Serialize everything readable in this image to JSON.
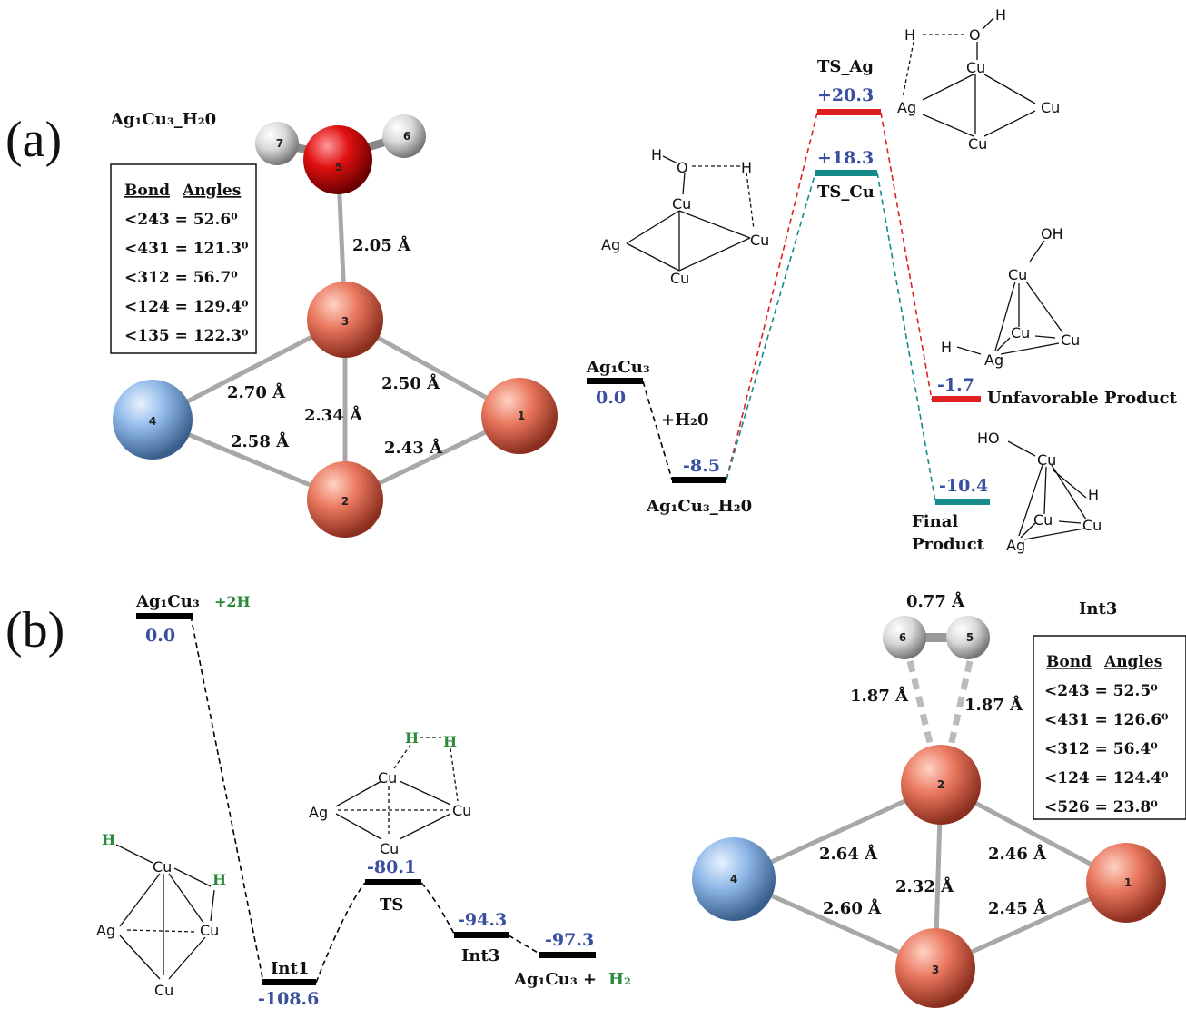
{
  "panel_a": {
    "label": "(a)",
    "molecule": {
      "title": "Ag₁Cu₃_H₂0",
      "angles_header_1": "Bond",
      "angles_header_2": "Angles",
      "angles": [
        "<243 = 52.6⁰",
        "<431 = 121.3⁰",
        "<312 = 56.7⁰",
        "<124 = 129.4⁰",
        "<135 = 122.3⁰"
      ],
      "bond_lengths": [
        "2.05 Å",
        "2.70 Å",
        "2.50 Å",
        "2.34 Å",
        "2.58 Å",
        "2.43 Å"
      ],
      "atom_labels": [
        "1",
        "2",
        "3",
        "4",
        "5",
        "6",
        "7"
      ]
    },
    "energy": {
      "levels": [
        {
          "name": "Ag₁Cu₃",
          "value": "0.0"
        },
        {
          "name": "Ag₁Cu₃_H₂0",
          "value": "-8.5"
        },
        {
          "name": "TS_Ag",
          "value": "+20.3"
        },
        {
          "name": "TS_Cu",
          "value": "+18.3"
        },
        {
          "name": "Unfavorable Product",
          "value": "-1.7"
        },
        {
          "name_line1": "Final",
          "name_line2": "Product",
          "value": "-10.4"
        }
      ],
      "step_label": "+H₂0",
      "colors": {
        "ag_path": "#e02020",
        "cu_path": "#158a8a",
        "base": "#000000",
        "value": "#3a4fa0"
      }
    },
    "struct_labels": {
      "ts_cu": [
        "H",
        "O",
        "H",
        "Cu",
        "Ag",
        "Cu",
        "Cu"
      ],
      "ts_ag": [
        "H",
        "O",
        "H",
        "Cu",
        "Ag",
        "Cu",
        "Cu"
      ],
      "unfav": [
        "OH",
        "Cu",
        "Cu",
        "Cu",
        "H",
        "Ag"
      ],
      "final": [
        "HO",
        "Cu",
        "H",
        "Cu",
        "Cu",
        "Ag"
      ]
    }
  },
  "panel_b": {
    "label": "(b)",
    "energy": {
      "start_name": "Ag₁Cu₃",
      "start_extra": "+2H",
      "start_value": "0.0",
      "int1": {
        "name": "Int1",
        "value": "-108.6"
      },
      "ts": {
        "name": "TS",
        "value": "-80.1"
      },
      "int3": {
        "name": "Int3",
        "value": "-94.3"
      },
      "end": {
        "name": "Ag₁Cu₃ +",
        "extra": "H₂",
        "value": "-97.3"
      }
    },
    "struct_labels": {
      "int1": [
        "H",
        "Cu",
        "H",
        "Ag",
        "Cu",
        "Cu"
      ],
      "ts": [
        "H",
        "H",
        "Cu",
        "Ag",
        "Cu",
        "Cu"
      ]
    },
    "molecule": {
      "title": "Int3",
      "hh_length": "0.77 Å",
      "angles_header_1": "Bond",
      "angles_header_2": "Angles",
      "angles": [
        "<243 = 52.5⁰",
        "<431 = 126.6⁰",
        "<312 = 56.4⁰",
        "<124 = 124.4⁰",
        "<526 = 23.8⁰"
      ],
      "bond_lengths": [
        "1.87 Å",
        "1.87 Å",
        "2.64 Å",
        "2.46 Å",
        "2.32 Å",
        "2.60 Å",
        "2.45 Å"
      ],
      "atom_labels": [
        "1",
        "2",
        "3",
        "4",
        "5",
        "6"
      ]
    }
  }
}
